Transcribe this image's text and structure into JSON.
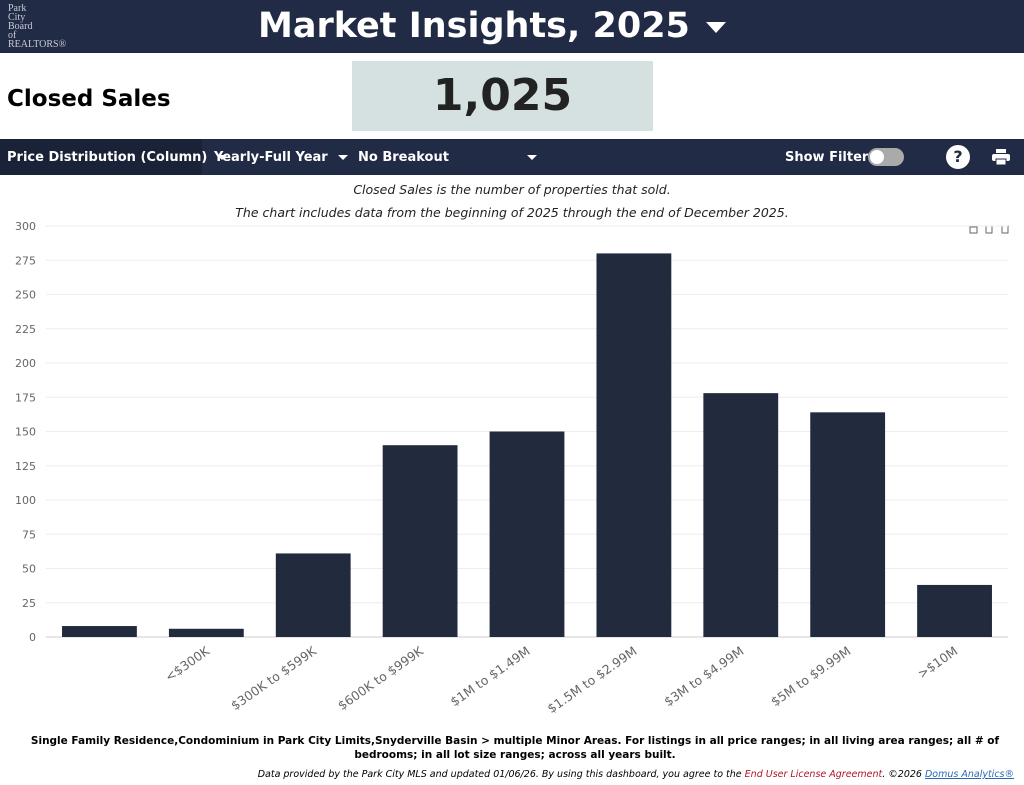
{
  "header": {
    "logo_lines": [
      "Park",
      "City",
      "Board",
      "of",
      "REALTORS®"
    ],
    "title": "Market Insights, 2025"
  },
  "metric": {
    "name": "Closed Sales",
    "value": "1,025"
  },
  "toolbar": {
    "chart_view": "Price Distribution (Column)",
    "period": "Yearly-Full Year",
    "breakout": "No Breakout",
    "filters_label": "Show Filters:"
  },
  "description": [
    "Closed Sales is the number of properties that sold.",
    "The chart includes data from the beginning of 2025 through the end of December 2025."
  ],
  "chart_data": {
    "type": "bar",
    "categories": [
      null,
      "<$300K",
      "$300K to $599K",
      "$600K to $999K",
      "$1M to $1.49M",
      "$1.5M to $2.99M",
      "$3M to $4.99M",
      "$5M to $9.99M",
      ">$10M"
    ],
    "values": [
      8,
      6,
      61,
      140,
      150,
      280,
      178,
      164,
      38
    ],
    "color": "#222a3e",
    "ylim": [
      0,
      300
    ],
    "yticks": [
      0,
      25,
      50,
      75,
      100,
      125,
      150,
      175,
      200,
      225,
      250,
      275,
      300
    ],
    "grid": true
  },
  "footnote": "Single Family Residence,Condominium in Park City Limits,Snyderville Basin > multiple Minor Areas. For listings in all price ranges; in all living area ranges; all # of bedrooms; in all lot size ranges; across all years built.",
  "footer": {
    "text": "Data provided by the Park City MLS and updated 01/06/26.  By using this dashboard, you agree to the ",
    "link1": "End User License Agreement",
    "text2": ".  ©2026 ",
    "link2": "Domus Analytics®"
  }
}
